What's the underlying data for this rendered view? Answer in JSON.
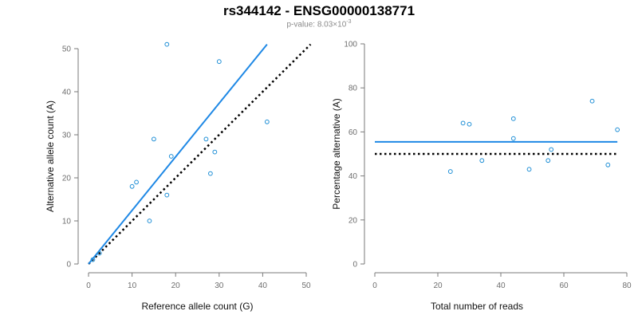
{
  "header": {
    "title": "rs344142 - ENSG00000138771",
    "pvalue_prefix": "p-value: 8.03×10",
    "pvalue_exp": "-3"
  },
  "colors": {
    "points": "#1f8fd6",
    "fit_line": "#1e88e5",
    "ref_line": "#000000",
    "axis": "#7a7a7a"
  },
  "chart_data": [
    {
      "type": "scatter",
      "xlabel": "Reference allele count (G)",
      "ylabel": "Alternative allele count (A)",
      "xlim": [
        0,
        50
      ],
      "ylim": [
        0,
        50
      ],
      "xticks": [
        0,
        10,
        20,
        30,
        40,
        50
      ],
      "yticks": [
        0,
        10,
        20,
        30,
        40,
        50
      ],
      "points": [
        {
          "x": 1,
          "y": 1
        },
        {
          "x": 2.5,
          "y": 2.5
        },
        {
          "x": 10,
          "y": 18
        },
        {
          "x": 11,
          "y": 19
        },
        {
          "x": 14,
          "y": 10
        },
        {
          "x": 15,
          "y": 29
        },
        {
          "x": 18,
          "y": 51
        },
        {
          "x": 18,
          "y": 16
        },
        {
          "x": 19,
          "y": 25
        },
        {
          "x": 27,
          "y": 29
        },
        {
          "x": 28,
          "y": 21
        },
        {
          "x": 29,
          "y": 26
        },
        {
          "x": 30,
          "y": 47
        },
        {
          "x": 41,
          "y": 33
        }
      ],
      "fit_line": {
        "x": [
          0,
          41
        ],
        "y": [
          0,
          51
        ]
      },
      "reference_line": {
        "x": [
          0,
          51
        ],
        "y": [
          0,
          51
        ]
      },
      "grid": false
    },
    {
      "type": "scatter",
      "xlabel": "Total number of reads",
      "ylabel": "Percentage alternative (A)",
      "xlim": [
        0,
        80
      ],
      "ylim": [
        0,
        100
      ],
      "xticks": [
        0,
        20,
        40,
        60,
        80
      ],
      "yticks": [
        0,
        20,
        40,
        60,
        80,
        100
      ],
      "points": [
        {
          "x": 24,
          "y": 42
        },
        {
          "x": 28,
          "y": 64
        },
        {
          "x": 30,
          "y": 63.5
        },
        {
          "x": 34,
          "y": 47
        },
        {
          "x": 44,
          "y": 66
        },
        {
          "x": 44,
          "y": 57
        },
        {
          "x": 49,
          "y": 43
        },
        {
          "x": 55,
          "y": 47
        },
        {
          "x": 56,
          "y": 52
        },
        {
          "x": 69,
          "y": 74
        },
        {
          "x": 74,
          "y": 45
        },
        {
          "x": 77,
          "y": 61
        }
      ],
      "fit_line": {
        "x": [
          0,
          77
        ],
        "y": [
          55.5,
          55.5
        ]
      },
      "reference_line": {
        "x": [
          0,
          77
        ],
        "y": [
          50,
          50
        ]
      },
      "grid": false
    }
  ]
}
